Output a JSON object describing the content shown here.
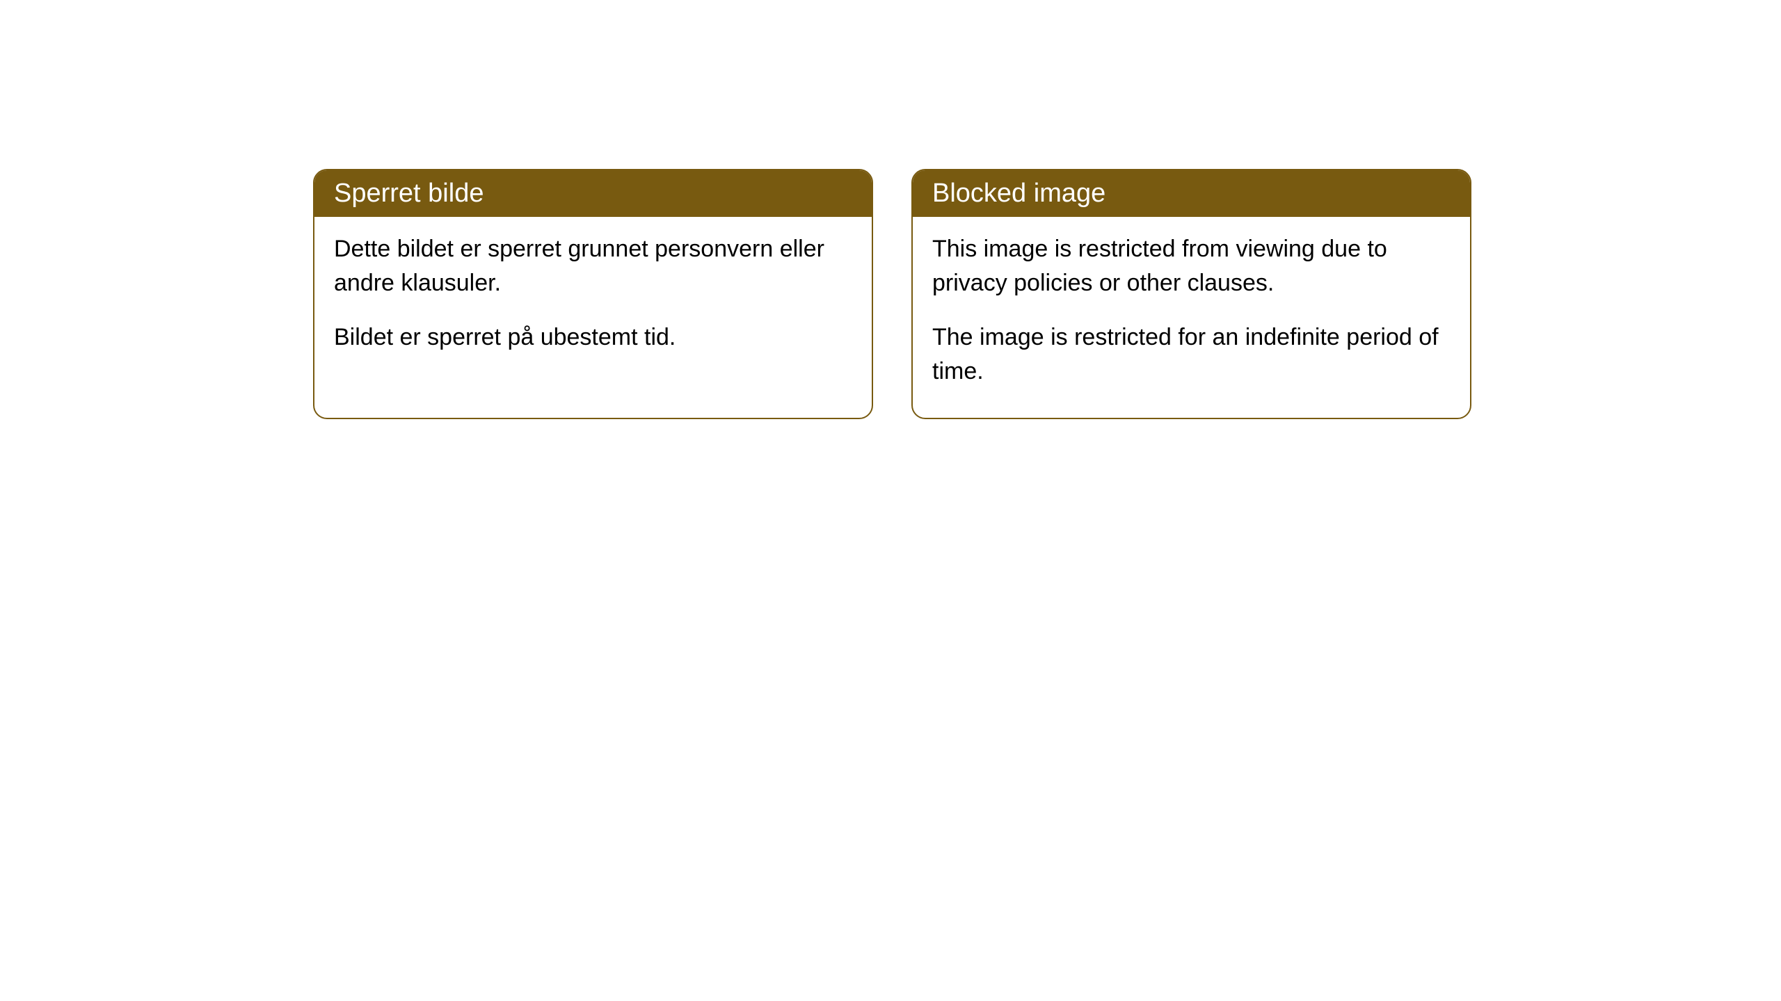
{
  "cards": [
    {
      "title": "Sperret bilde",
      "paragraph1": "Dette bildet er sperret grunnet personvern eller andre klausuler.",
      "paragraph2": "Bildet er sperret på ubestemt tid."
    },
    {
      "title": "Blocked image",
      "paragraph1": "This image is restricted from viewing due to privacy policies or other clauses.",
      "paragraph2": "The image is restricted for an indefinite period of time."
    }
  ],
  "styling": {
    "header_background": "#785a10",
    "header_text_color": "#ffffff",
    "border_color": "#785a10",
    "body_background": "#ffffff",
    "body_text_color": "#000000",
    "border_radius": 20,
    "header_fontsize": 38,
    "body_fontsize": 34
  }
}
